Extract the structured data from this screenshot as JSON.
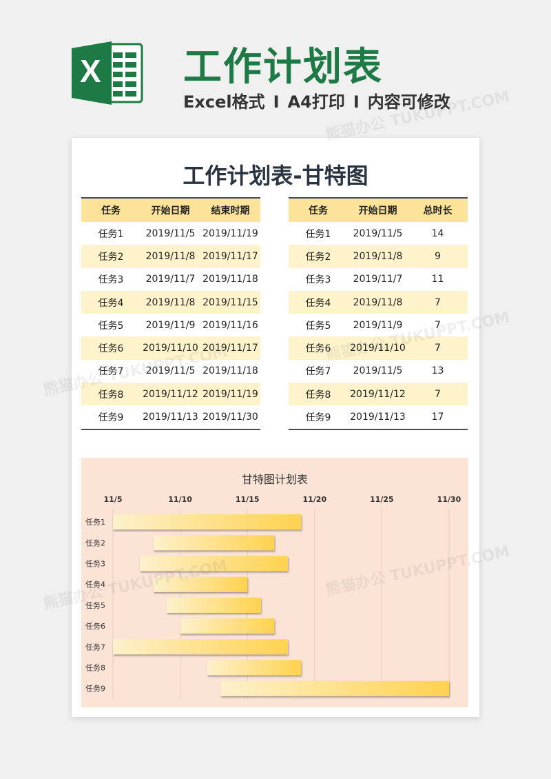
{
  "header": {
    "logo_letter": "X",
    "title": "工作计划表",
    "subtitle_parts": [
      "Excel格式",
      "I",
      "A4打印",
      "I",
      "内容可修改"
    ]
  },
  "document": {
    "title": "工作计划表-甘特图"
  },
  "table_left": {
    "headers": [
      "任务",
      "开始日期",
      "结束时期"
    ],
    "rows": [
      [
        "任务1",
        "2019/11/5",
        "2019/11/19"
      ],
      [
        "任务2",
        "2019/11/8",
        "2019/11/17"
      ],
      [
        "任务3",
        "2019/11/7",
        "2019/11/18"
      ],
      [
        "任务4",
        "2019/11/8",
        "2019/11/15"
      ],
      [
        "任务5",
        "2019/11/9",
        "2019/11/16"
      ],
      [
        "任务6",
        "2019/11/10",
        "2019/11/17"
      ],
      [
        "任务7",
        "2019/11/5",
        "2019/11/18"
      ],
      [
        "任务8",
        "2019/11/12",
        "2019/11/19"
      ],
      [
        "任务9",
        "2019/11/13",
        "2019/11/30"
      ]
    ]
  },
  "table_right": {
    "headers": [
      "任务",
      "开始日期",
      "总时长"
    ],
    "rows": [
      [
        "任务1",
        "2019/11/5",
        "14"
      ],
      [
        "任务2",
        "2019/11/8",
        "9"
      ],
      [
        "任务3",
        "2019/11/7",
        "11"
      ],
      [
        "任务4",
        "2019/11/8",
        "7"
      ],
      [
        "任务5",
        "2019/11/9",
        "7"
      ],
      [
        "任务6",
        "2019/11/10",
        "7"
      ],
      [
        "任务7",
        "2019/11/5",
        "13"
      ],
      [
        "任务8",
        "2019/11/12",
        "7"
      ],
      [
        "任务9",
        "2019/11/13",
        "17"
      ]
    ]
  },
  "chart_data": {
    "type": "bar",
    "title": "甘特图计划表",
    "orientation": "horizontal-stacked-gantt",
    "x_tick_labels": [
      "11/5",
      "11/10",
      "11/15",
      "11/20",
      "11/25",
      "11/30"
    ],
    "xlim": [
      "2019-11-05",
      "2019-11-30"
    ],
    "x_ticks": [
      "2019-11-05",
      "2019-11-10",
      "2019-11-15",
      "2019-11-20",
      "2019-11-25",
      "2019-11-30"
    ],
    "x_axis_position": "top",
    "categories": [
      "任务1",
      "任务2",
      "任务3",
      "任务4",
      "任务5",
      "任务6",
      "任务7",
      "任务8",
      "任务9"
    ],
    "start": [
      "2019-11-05",
      "2019-11-08",
      "2019-11-07",
      "2019-11-08",
      "2019-11-09",
      "2019-11-10",
      "2019-11-05",
      "2019-11-12",
      "2019-11-13"
    ],
    "end": [
      "2019-11-19",
      "2019-11-17",
      "2019-11-18",
      "2019-11-15",
      "2019-11-16",
      "2019-11-17",
      "2019-11-18",
      "2019-11-19",
      "2019-11-30"
    ],
    "grid": true,
    "bar_color_start": "#fdf1cc",
    "bar_color_end": "#ffd24f",
    "background": "#fbe3d6"
  },
  "colors": {
    "brand_green": "#1e7a45",
    "table_header": "#fde39a",
    "table_stripe": "#fff3cc",
    "rule": "#3b4a6b"
  },
  "watermark": "熊猫办公 TUKUPPT.COM"
}
